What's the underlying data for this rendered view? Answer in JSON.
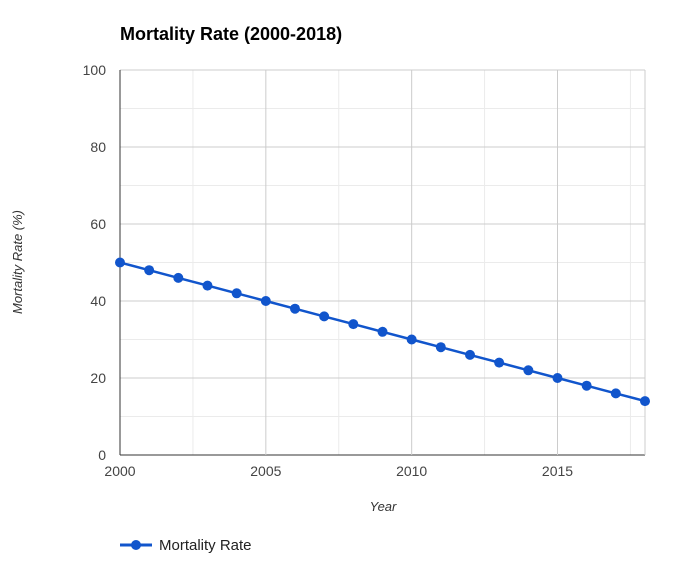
{
  "chart_data": {
    "type": "line",
    "title": "Mortality Rate (2000-2018)",
    "xlabel": "Year",
    "ylabel": "Mortality Rate (%)",
    "xlim": [
      2000,
      2018
    ],
    "ylim": [
      0,
      100
    ],
    "x_ticks": [
      2000,
      2005,
      2010,
      2015
    ],
    "y_ticks": [
      0,
      20,
      40,
      60,
      80,
      100
    ],
    "grid": true,
    "legend_position": "bottom-left",
    "series": [
      {
        "name": "Mortality Rate",
        "color": "#1155cc",
        "x": [
          2000,
          2001,
          2002,
          2003,
          2004,
          2005,
          2006,
          2007,
          2008,
          2009,
          2010,
          2011,
          2012,
          2013,
          2014,
          2015,
          2016,
          2017,
          2018
        ],
        "values": [
          50,
          48,
          46,
          44,
          42,
          40,
          38,
          36,
          34,
          32,
          30,
          28,
          26,
          24,
          22,
          20,
          18,
          16,
          14
        ]
      }
    ]
  }
}
